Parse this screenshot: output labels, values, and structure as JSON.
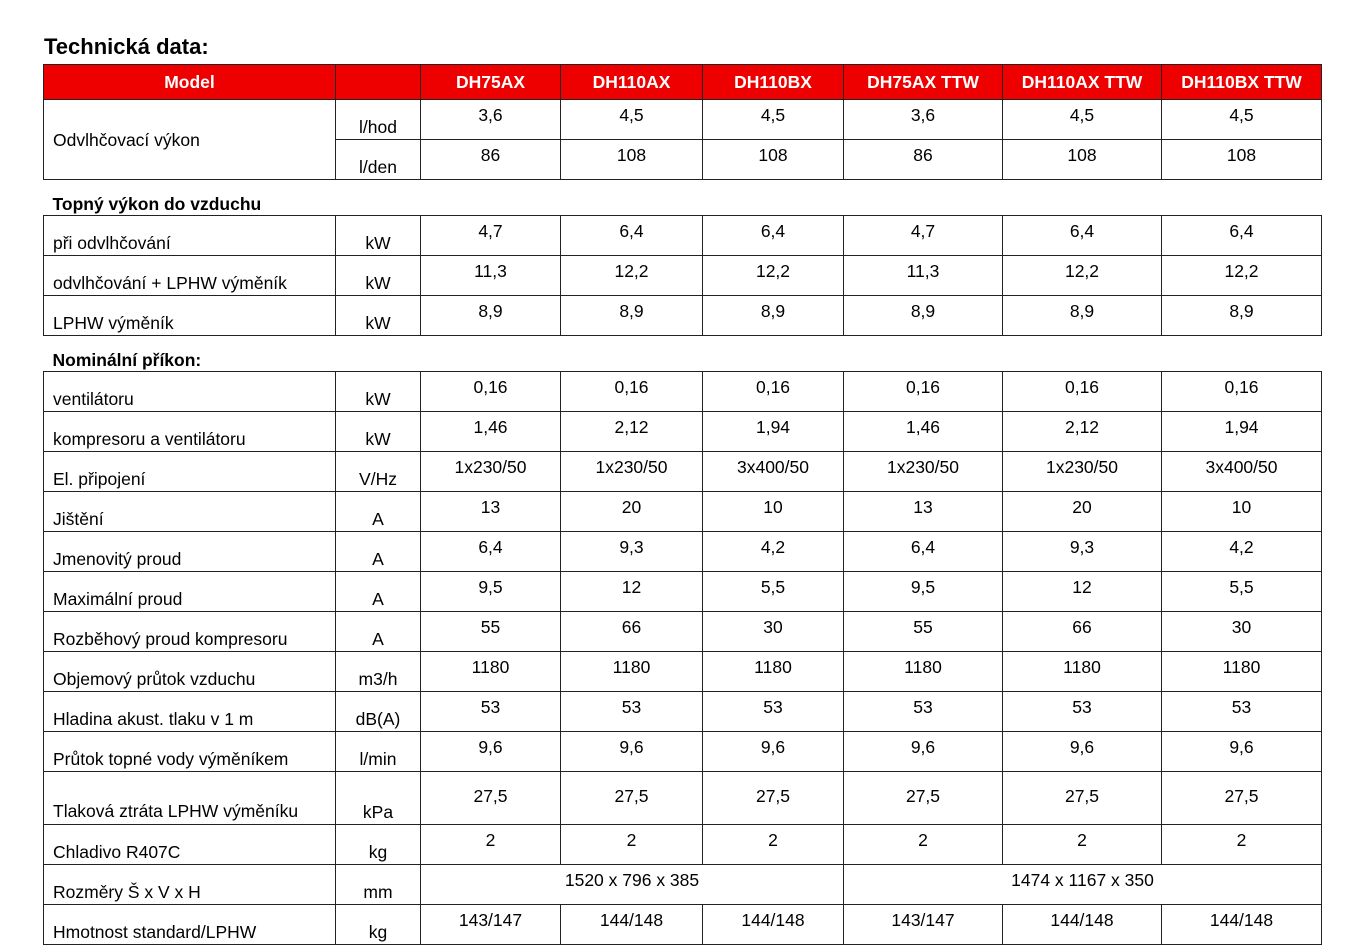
{
  "title": "Technická data:",
  "header": {
    "model_label": "Model",
    "unit_label": "",
    "models": [
      "DH75AX",
      "DH110AX",
      "DH110BX",
      "DH75AX TTW",
      "DH110AX TTW",
      "DH110BX TTW"
    ]
  },
  "accent_color": "#ee0000",
  "dehumidification": {
    "label": "Odvlhčovací výkon",
    "rows": [
      {
        "unit": "l/hod",
        "values": [
          "3,6",
          "4,5",
          "4,5",
          "3,6",
          "4,5",
          "4,5"
        ]
      },
      {
        "unit": "l/den",
        "values": [
          "86",
          "108",
          "108",
          "86",
          "108",
          "108"
        ]
      }
    ]
  },
  "sections": [
    {
      "title": "Topný výkon do vzduchu",
      "rows": [
        {
          "label": "při odvlhčování",
          "unit": "kW",
          "values": [
            "4,7",
            "6,4",
            "6,4",
            "4,7",
            "6,4",
            "6,4"
          ]
        },
        {
          "label": "odvlhčování + LPHW výměník",
          "unit": "kW",
          "values": [
            "11,3",
            "12,2",
            "12,2",
            "11,3",
            "12,2",
            "12,2"
          ]
        },
        {
          "label": "LPHW výměník",
          "unit": "kW",
          "values": [
            "8,9",
            "8,9",
            "8,9",
            "8,9",
            "8,9",
            "8,9"
          ]
        }
      ]
    },
    {
      "title": "Nominální příkon:",
      "rows": [
        {
          "label": "ventilátoru",
          "unit": "kW",
          "values": [
            "0,16",
            "0,16",
            "0,16",
            "0,16",
            "0,16",
            "0,16"
          ]
        },
        {
          "label": "kompresoru a ventilátoru",
          "unit": "kW",
          "values": [
            "1,46",
            "2,12",
            "1,94",
            "1,46",
            "2,12",
            "1,94"
          ]
        },
        {
          "label": "El. připojení",
          "unit": "V/Hz",
          "values": [
            "1x230/50",
            "1x230/50",
            "3x400/50",
            "1x230/50",
            "1x230/50",
            "3x400/50"
          ]
        },
        {
          "label": "Jištění",
          "unit": "A",
          "values": [
            "13",
            "20",
            "10",
            "13",
            "20",
            "10"
          ]
        },
        {
          "label": "Jmenovitý proud",
          "unit": "A",
          "values": [
            "6,4",
            "9,3",
            "4,2",
            "6,4",
            "9,3",
            "4,2"
          ]
        },
        {
          "label": "Maximální proud",
          "unit": "A",
          "values": [
            "9,5",
            "12",
            "5,5",
            "9,5",
            "12",
            "5,5"
          ]
        },
        {
          "label": "Rozběhový proud kompresoru",
          "unit": "A",
          "values": [
            "55",
            "66",
            "30",
            "55",
            "66",
            "30"
          ]
        },
        {
          "label": "Objemový průtok vzduchu",
          "unit": "m3/h",
          "values": [
            "1180",
            "1180",
            "1180",
            "1180",
            "1180",
            "1180"
          ]
        },
        {
          "label": "Hladina akust. tlaku v 1 m",
          "unit": "dB(A)",
          "values": [
            "53",
            "53",
            "53",
            "53",
            "53",
            "53"
          ]
        },
        {
          "label": "Průtok topné vody výměníkem",
          "unit": "l/min",
          "values": [
            "9,6",
            "9,6",
            "9,6",
            "9,6",
            "9,6",
            "9,6"
          ]
        },
        {
          "label": "Tlaková ztráta LPHW výměníku",
          "unit": "kPa",
          "values": [
            "27,5",
            "27,5",
            "27,5",
            "27,5",
            "27,5",
            "27,5"
          ],
          "tall": true
        },
        {
          "label": "Chladivo R407C",
          "unit": "kg",
          "values": [
            "2",
            "2",
            "2",
            "2",
            "2",
            "2"
          ]
        },
        {
          "label": "Rozměry Š x V x H",
          "unit": "mm",
          "values": [
            "1520 x 796 x 385",
            "1474 x 1167 x 350"
          ],
          "span": 3
        },
        {
          "label": "Hmotnost standard/LPHW",
          "unit": "kg",
          "values": [
            "143/147",
            "144/148",
            "144/148",
            "143/147",
            "144/148",
            "144/148"
          ]
        }
      ]
    }
  ]
}
